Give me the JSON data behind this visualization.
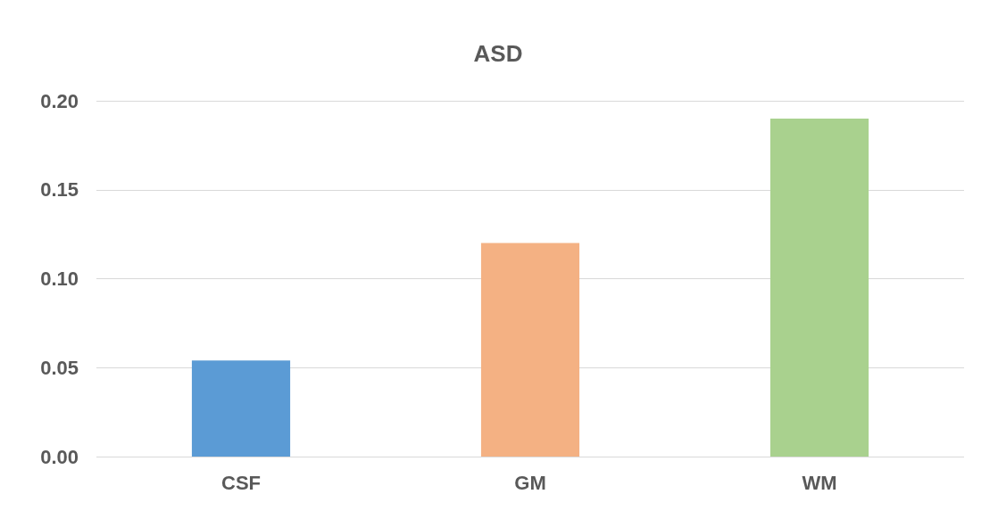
{
  "chart_data": {
    "type": "bar",
    "title": "ASD",
    "categories": [
      "CSF",
      "GM",
      "WM"
    ],
    "values": [
      0.054,
      0.12,
      0.19
    ],
    "colors": [
      "#5b9bd5",
      "#f4b183",
      "#a9d18e"
    ],
    "ylim": [
      0,
      0.2
    ],
    "yticks": [
      {
        "value": 0,
        "label": "0.00"
      },
      0.05,
      {
        "value": 0.1,
        "label": "0.10"
      },
      0.15,
      {
        "value": 0.2,
        "label": "0.20"
      }
    ],
    "grid": "y"
  }
}
